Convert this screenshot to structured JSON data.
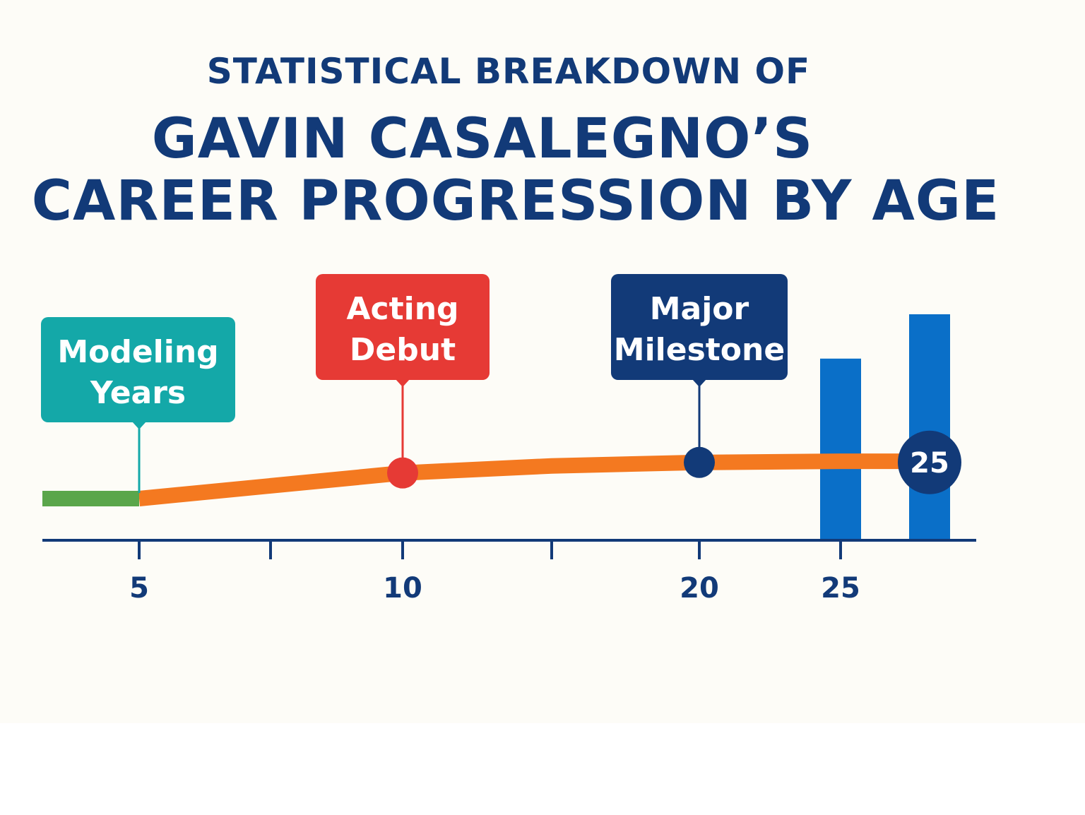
{
  "title": {
    "line1": "STATISTICAL BREAKDOWN OF",
    "line2": "GAVIN CASALEGNO’S",
    "line3": "CAREER PROGRESSION BY AGE"
  },
  "colors": {
    "title": "#123a78",
    "axis": "#123a78",
    "progression_line": "#f47920",
    "modeling_segment": "#5aa64b",
    "bars": "#0a6fc8",
    "modeling_box": "#14a8a8",
    "acting_box": "#e63a35",
    "milestone_box": "#123a78",
    "background": "#fdfcf7"
  },
  "chart_data": {
    "type": "line",
    "x_axis": {
      "ticks": [
        5,
        7.5,
        10,
        15,
        20,
        25
      ],
      "tick_labels": [
        {
          "x": 5,
          "label": "5"
        },
        {
          "x": 10,
          "label": "10"
        },
        {
          "x": 20,
          "label": "20"
        },
        {
          "x": 25,
          "label": "25"
        }
      ]
    },
    "progression_line": {
      "points": [
        {
          "x": 1.5,
          "y": 0
        },
        {
          "x": 5,
          "y": 0
        },
        {
          "x": 10,
          "y": 22
        },
        {
          "x": 15,
          "y": 28
        },
        {
          "x": 20,
          "y": 31
        },
        {
          "x": 25,
          "y": 32
        },
        {
          "x": 27.5,
          "y": 32
        }
      ],
      "modeling_segment_end_x": 5
    },
    "bars": [
      {
        "x": 25,
        "value": 120
      },
      {
        "x": 28,
        "value": 158
      }
    ],
    "y_range": [
      -33,
      160
    ],
    "annotations": [
      {
        "key": "modeling",
        "text_lines": [
          "Modeling",
          "Years"
        ],
        "x": 5,
        "y": 0,
        "marker": "none"
      },
      {
        "key": "acting",
        "text_lines": [
          "Acting",
          "Debut"
        ],
        "x": 10,
        "y": 22,
        "marker": "dot"
      },
      {
        "key": "milestone",
        "text_lines": [
          "Major",
          "Milestone"
        ],
        "x": 20,
        "y": 31,
        "marker": "dot"
      }
    ],
    "end_badge": {
      "x": 28,
      "y": 31,
      "label": "25"
    }
  }
}
